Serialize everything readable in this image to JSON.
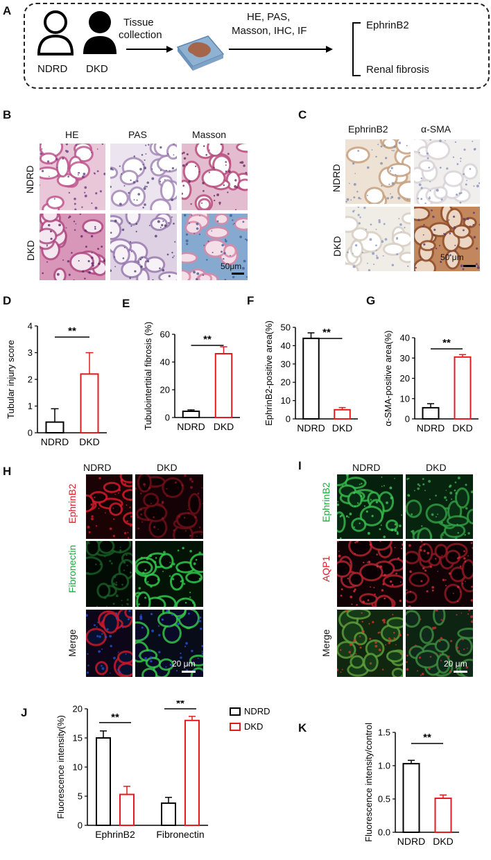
{
  "panels": {
    "A": "A",
    "B": "B",
    "C": "C",
    "D": "D",
    "E": "E",
    "F": "F",
    "G": "G",
    "H": "H",
    "I": "I",
    "J": "J",
    "K": "K"
  },
  "workflow": {
    "group1": "NDRD",
    "group2": "DKD",
    "step1": "Tissue",
    "step1b": "collection",
    "methods1": "HE, PAS,",
    "methods2": "Masson, IHC, IF",
    "out1": "EphrinB2",
    "out2": "Renal fibrosis"
  },
  "panelB": {
    "cols": [
      "HE",
      "PAS",
      "Masson"
    ],
    "rows": [
      "NDRD",
      "DKD"
    ],
    "scale": "50μm"
  },
  "panelC": {
    "cols": [
      "EphrinB2",
      "α-SMA"
    ],
    "rows": [
      "NDRD",
      "DKD"
    ],
    "scale": "50 μm"
  },
  "panelH": {
    "cols": [
      "NDRD",
      "DKD"
    ],
    "rows": [
      "EphrinB2",
      "Fibronectin",
      "Merge"
    ],
    "scale": "20 μm"
  },
  "panelI": {
    "cols": [
      "NDRD",
      "DKD"
    ],
    "rows": [
      "EphrinB2",
      "AQP1",
      "Merge"
    ],
    "scale": "20 μm"
  },
  "colors": {
    "ndrd": "#000000",
    "dkd": "#e41a1c",
    "green": "#1faa3c",
    "red": "#d9202a"
  },
  "chart_data": [
    {
      "id": "D",
      "type": "bar",
      "ylabel": "Tubular injury score",
      "categories": [
        "NDRD",
        "DKD"
      ],
      "values": [
        0.4,
        2.2
      ],
      "errors": [
        0.5,
        0.8
      ],
      "ylim": [
        0,
        4
      ],
      "yticks": [
        0,
        1,
        2,
        3,
        4
      ],
      "sig": "**"
    },
    {
      "id": "E",
      "type": "bar",
      "ylabel": "Tubulointertitial fibrosis (%)",
      "categories": [
        "NDRD",
        "DKD"
      ],
      "values": [
        4.5,
        46
      ],
      "errors": [
        1,
        5
      ],
      "ylim": [
        0,
        60
      ],
      "yticks": [
        0,
        20,
        40,
        60
      ],
      "sig": "**"
    },
    {
      "id": "F",
      "type": "bar",
      "ylabel": "EphrinB2-positive area(%)",
      "categories": [
        "NDRD",
        "DKD"
      ],
      "values": [
        44,
        5
      ],
      "errors": [
        3,
        1.2
      ],
      "ylim": [
        0,
        50
      ],
      "yticks": [
        0,
        10,
        20,
        30,
        40,
        50
      ],
      "sig": "**"
    },
    {
      "id": "G",
      "type": "bar",
      "ylabel": "α-SMA-positive area(%)",
      "categories": [
        "NDRD",
        "DKD"
      ],
      "values": [
        5.5,
        30.5
      ],
      "errors": [
        2,
        1.2
      ],
      "ylim": [
        0,
        40
      ],
      "yticks": [
        0,
        10,
        20,
        30,
        40
      ],
      "sig": "**"
    },
    {
      "id": "J",
      "type": "bar",
      "ylabel": "Fluorescence intensity(%)",
      "categories": [
        "EphrinB2",
        "Fibronectin"
      ],
      "series": [
        {
          "name": "NDRD",
          "values": [
            15,
            3.8
          ],
          "errors": [
            1.2,
            1.0
          ]
        },
        {
          "name": "DKD",
          "values": [
            5.3,
            18
          ],
          "errors": [
            1.4,
            0.7
          ]
        }
      ],
      "ylim": [
        0,
        20
      ],
      "yticks": [
        0,
        5,
        10,
        15,
        20
      ],
      "sig": [
        "**",
        "**"
      ],
      "legend": "top-right"
    },
    {
      "id": "K",
      "type": "bar",
      "ylabel": "Fluorescence intensity/control",
      "categories": [
        "NDRD",
        "DKD"
      ],
      "values": [
        1.03,
        0.51
      ],
      "errors": [
        0.05,
        0.05
      ],
      "ylim": [
        0,
        1.5
      ],
      "yticks": [
        "0.0",
        "0.5",
        "1.0",
        "1.5"
      ],
      "sig": "**"
    }
  ]
}
